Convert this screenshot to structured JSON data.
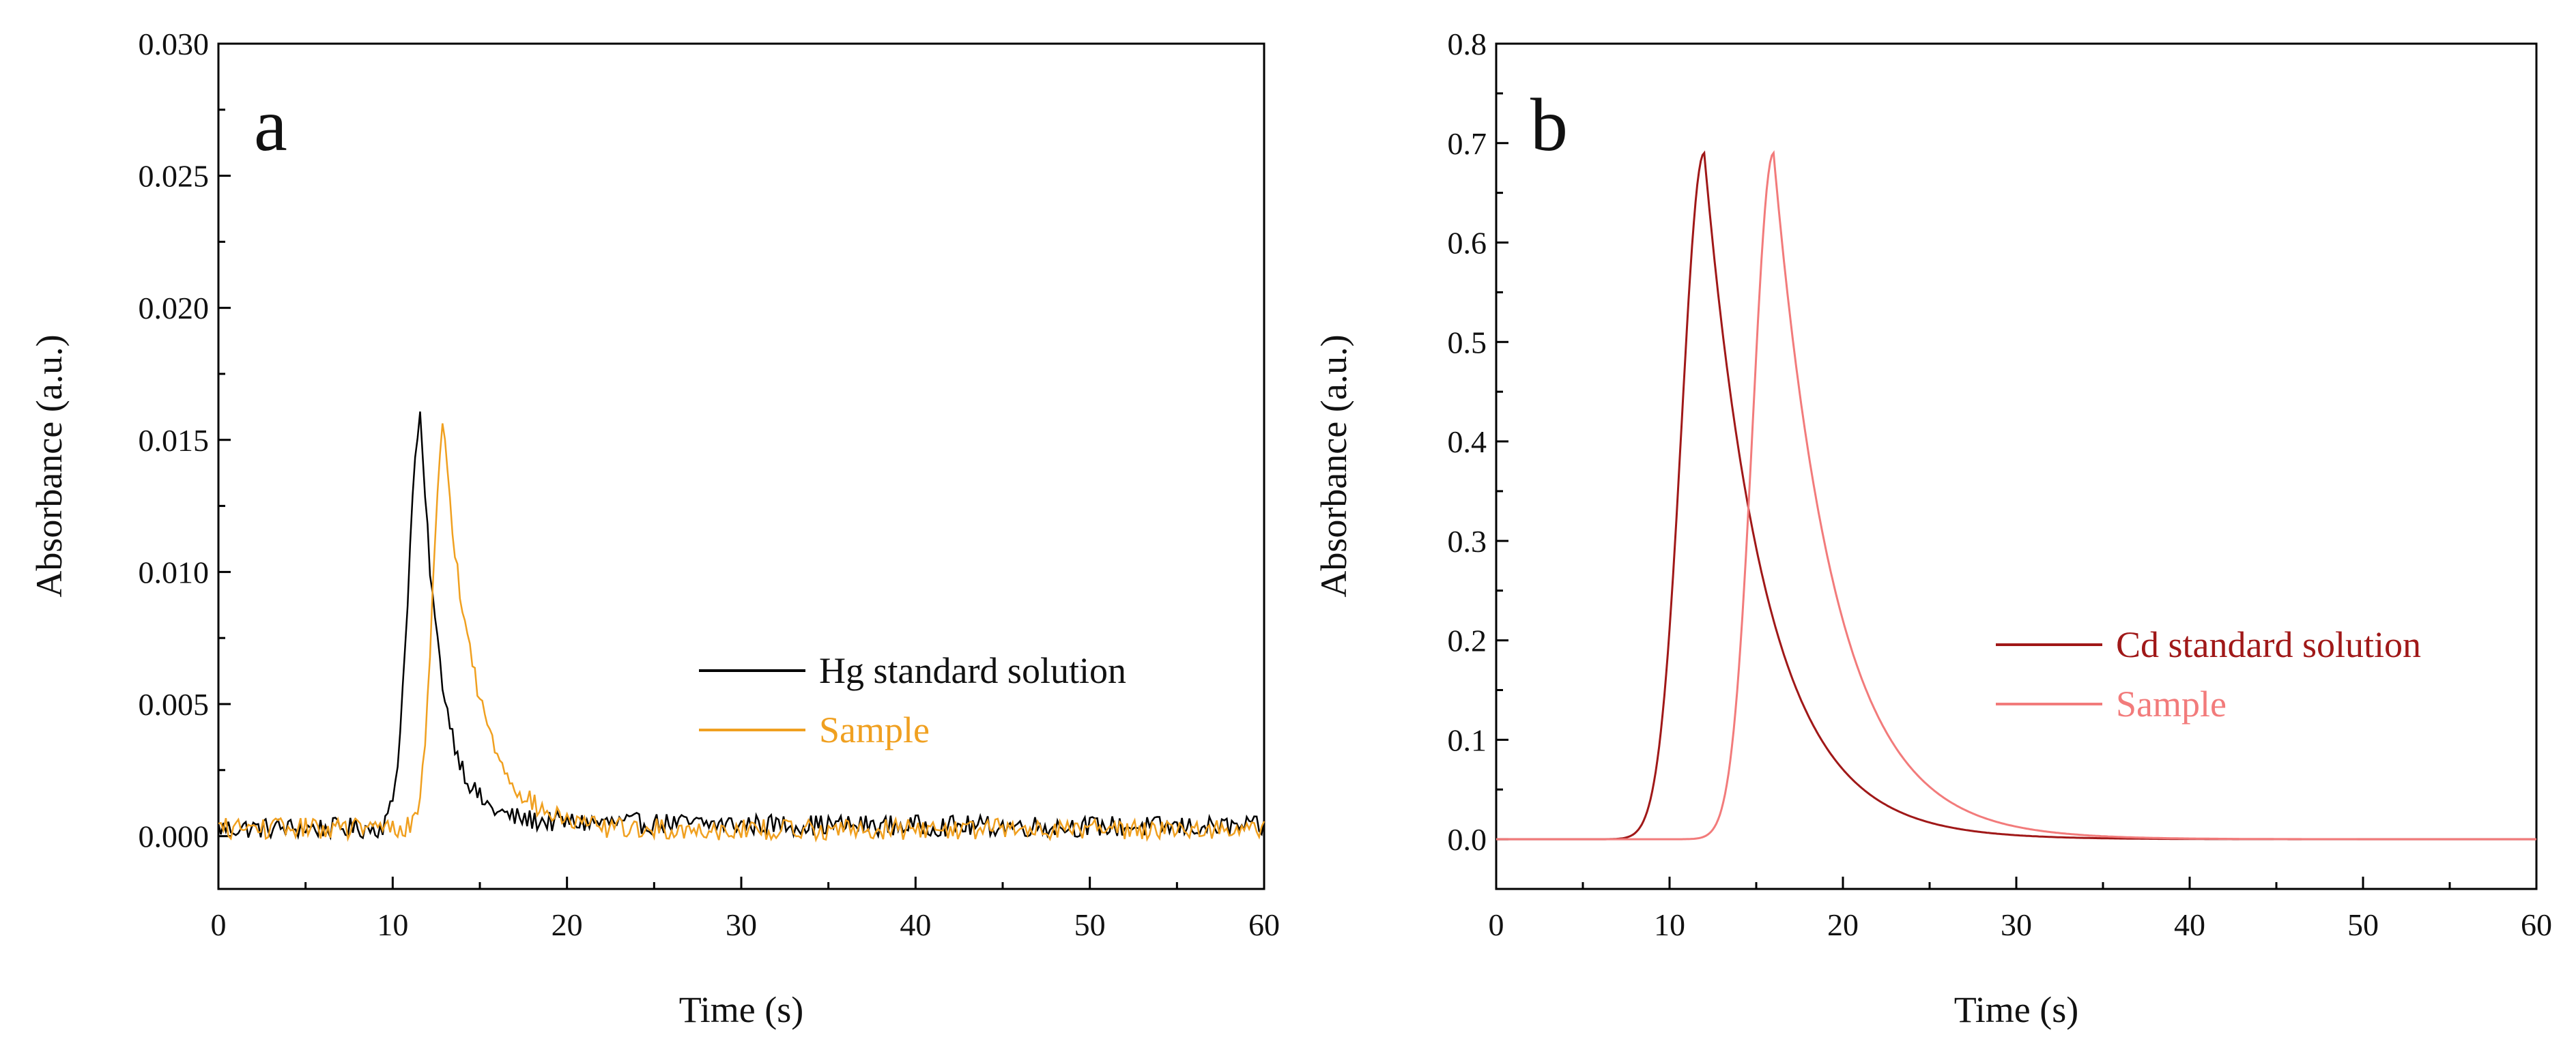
{
  "chart_data": [
    {
      "panel": "a",
      "type": "line",
      "xlabel": "Time (s)",
      "ylabel": "Absorbance (a.u.)",
      "xlim": [
        0,
        60
      ],
      "ylim": [
        -0.002,
        0.03
      ],
      "xticks": [
        "0",
        "10",
        "20",
        "30",
        "40",
        "50",
        "60"
      ],
      "yticks": [
        "0.000",
        "0.005",
        "0.010",
        "0.015",
        "0.020",
        "0.025",
        "0.030"
      ],
      "legend_position": "center-right",
      "series": [
        {
          "name": "Hg standard solution",
          "color": "#000000",
          "peak_time": 11.6,
          "peak_value": 0.0157,
          "peak_width_left": 0.7,
          "peak_width_right": 1.2,
          "baseline": 0.0003,
          "tail_level": 0.0006,
          "noise": 0.0004
        },
        {
          "name": "Sample",
          "color": "#f0a020",
          "peak_time": 12.9,
          "peak_value": 0.0154,
          "peak_width_left": 0.6,
          "peak_width_right": 1.9,
          "baseline": 0.0003,
          "tail_level": 0.0002,
          "noise": 0.0004
        }
      ]
    },
    {
      "panel": "b",
      "type": "line",
      "xlabel": "Time (s)",
      "ylabel": "Absorbance (a.u.)",
      "xlim": [
        0,
        60
      ],
      "ylim": [
        -0.05,
        0.8
      ],
      "xticks": [
        "0",
        "10",
        "20",
        "30",
        "40",
        "50",
        "60"
      ],
      "yticks": [
        "0.0",
        "0.1",
        "0.2",
        "0.3",
        "0.4",
        "0.5",
        "0.6",
        "0.7",
        "0.8"
      ],
      "legend_position": "center-right",
      "series": [
        {
          "name": "Cd standard solution",
          "color": "#a01818",
          "peak_time": 12.0,
          "peak_value": 0.69,
          "peak_width_left": 1.3,
          "peak_width_right": 3.5,
          "baseline": 0.0,
          "tail_level": 0.0,
          "noise": 0.0
        },
        {
          "name": "Sample",
          "color": "#f27b7b",
          "peak_time": 16.0,
          "peak_value": 0.69,
          "peak_width_left": 1.2,
          "peak_width_right": 3.5,
          "baseline": 0.0,
          "tail_level": 0.0,
          "noise": 0.0
        }
      ]
    }
  ],
  "panels": {
    "a": {
      "letter": "a"
    },
    "b": {
      "letter": "b"
    }
  }
}
